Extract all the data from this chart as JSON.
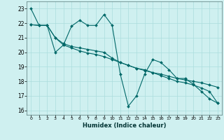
{
  "xlabel": "Humidex (Indice chaleur)",
  "background_color": "#cff0f0",
  "grid_color": "#aadddd",
  "line_color": "#006868",
  "xlim": [
    -0.5,
    23.5
  ],
  "ylim": [
    15.7,
    23.5
  ],
  "yticks": [
    16,
    17,
    18,
    19,
    20,
    21,
    22,
    23
  ],
  "xticks": [
    0,
    1,
    2,
    3,
    4,
    5,
    6,
    7,
    8,
    9,
    10,
    11,
    12,
    13,
    14,
    15,
    16,
    17,
    18,
    19,
    20,
    21,
    22,
    23
  ],
  "series": [
    {
      "x": [
        0,
        1,
        2,
        3,
        4,
        5,
        6,
        7,
        8,
        9,
        10,
        11,
        12,
        13,
        14,
        15,
        16,
        17,
        18,
        19,
        20,
        21,
        22,
        23
      ],
      "y": [
        23.0,
        21.85,
        21.85,
        21.0,
        20.5,
        21.8,
        22.2,
        21.85,
        21.85,
        22.6,
        21.85,
        18.5,
        16.3,
        17.0,
        18.5,
        19.5,
        19.3,
        18.8,
        18.2,
        18.2,
        17.8,
        17.3,
        16.8,
        16.5
      ]
    },
    {
      "x": [
        0,
        1,
        2,
        3,
        4,
        5,
        6,
        7,
        8,
        9,
        10,
        11,
        12,
        13,
        14,
        15,
        16,
        17,
        18,
        19,
        20,
        21,
        22,
        23
      ],
      "y": [
        21.9,
        21.85,
        21.85,
        20.0,
        20.5,
        20.3,
        20.1,
        19.95,
        19.85,
        19.7,
        19.5,
        19.3,
        19.1,
        18.9,
        18.75,
        18.6,
        18.5,
        18.35,
        18.2,
        18.1,
        18.0,
        17.9,
        17.75,
        17.6
      ]
    },
    {
      "x": [
        0,
        1,
        2,
        3,
        4,
        5,
        6,
        7,
        8,
        9,
        10,
        11,
        12,
        13,
        14,
        15,
        16,
        17,
        18,
        19,
        20,
        21,
        22,
        23
      ],
      "y": [
        21.9,
        21.85,
        21.85,
        21.0,
        20.6,
        20.4,
        20.3,
        20.2,
        20.1,
        20.0,
        19.6,
        19.3,
        19.1,
        18.9,
        18.8,
        18.6,
        18.4,
        18.2,
        18.0,
        17.9,
        17.75,
        17.55,
        17.3,
        16.5
      ]
    }
  ]
}
